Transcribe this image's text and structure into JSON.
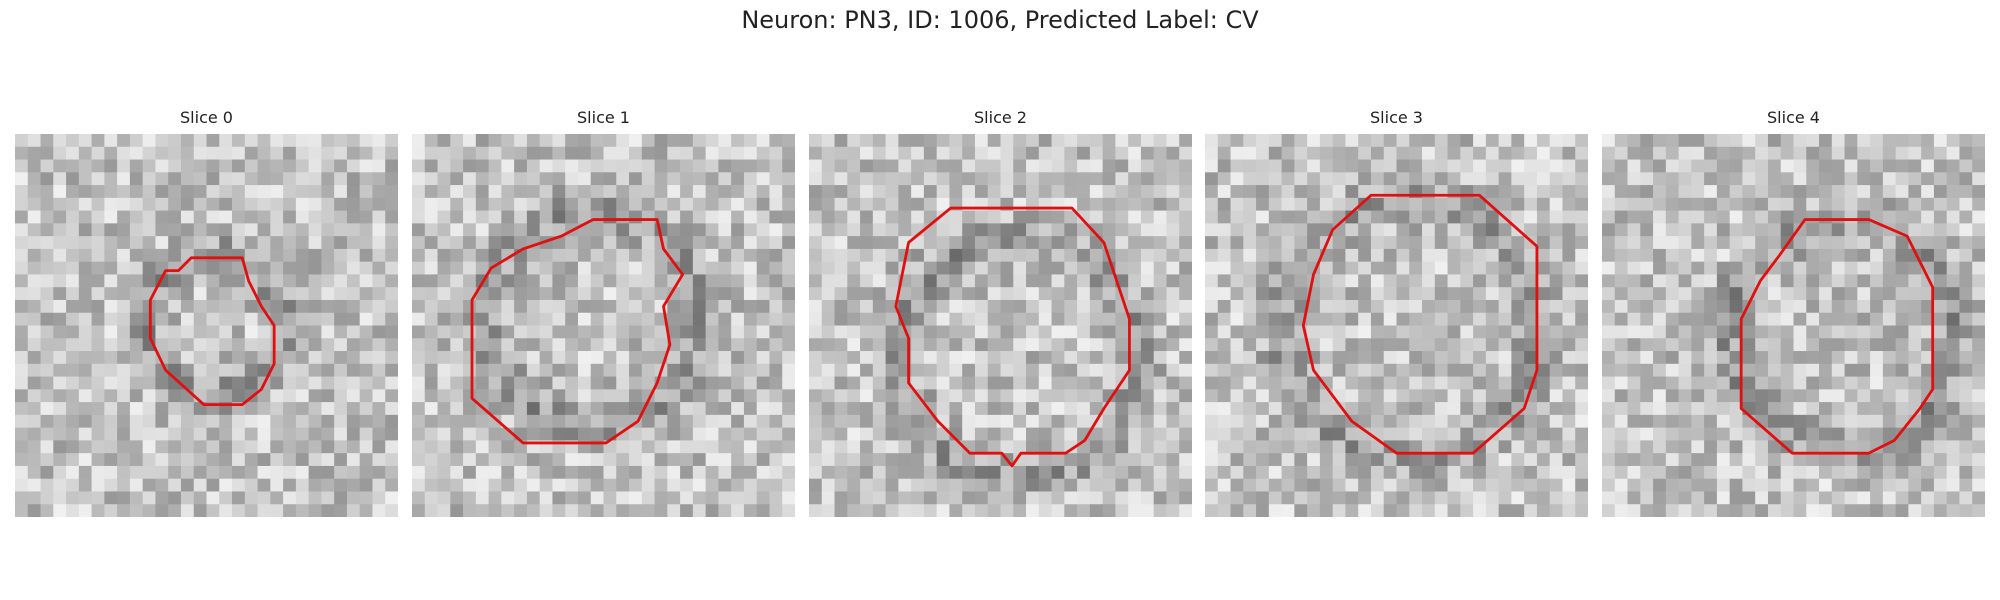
{
  "header": {
    "title": "Neuron: PN3, ID: 1006, Predicted Label: CV"
  },
  "panels": [
    {
      "title": "Slice 0"
    },
    {
      "title": "Slice 1"
    },
    {
      "title": "Slice 2"
    },
    {
      "title": "Slice 3"
    },
    {
      "title": "Slice 4"
    }
  ]
}
